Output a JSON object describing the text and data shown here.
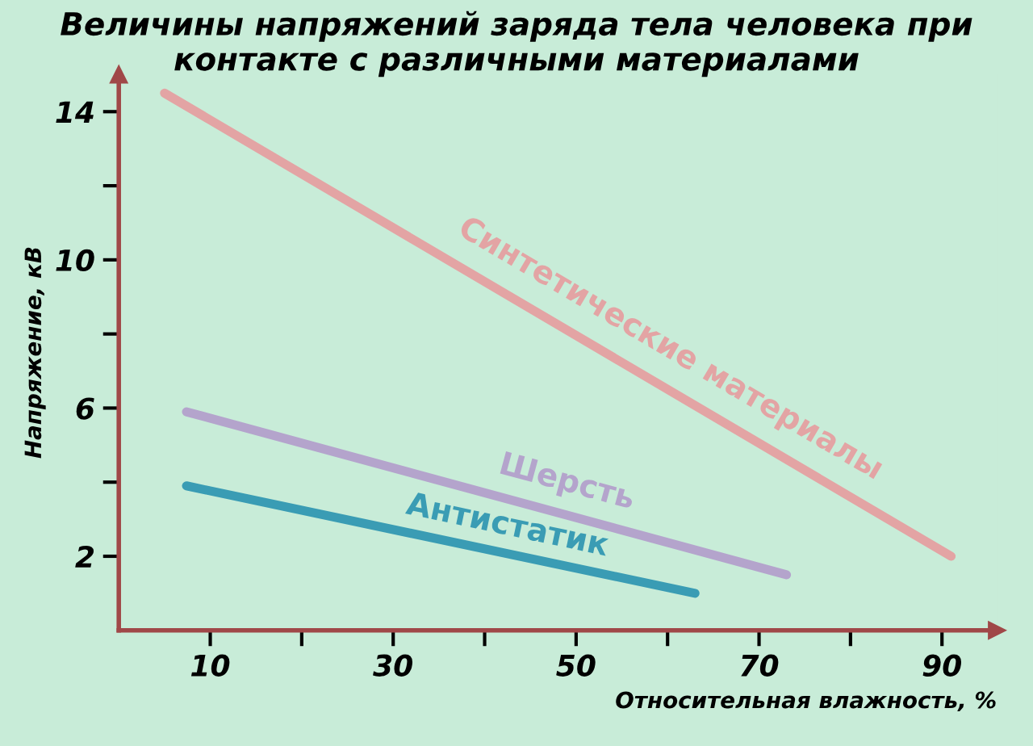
{
  "chart_data": {
    "type": "line",
    "title": "Величины напряжений заряда тела человека при\nконтакте с различными материалами",
    "xlabel": "Относительная влажность, %",
    "ylabel": "Напряжение, кВ",
    "xlim": [
      0,
      96
    ],
    "ylim": [
      0,
      15
    ],
    "xticks": [
      10,
      {
        "value": 20,
        "label": null
      },
      30,
      {
        "value": 40,
        "label": null
      },
      50,
      {
        "value": 60,
        "label": null
      },
      70,
      {
        "value": 80,
        "label": null
      },
      90
    ],
    "yticks": [
      2,
      {
        "value": 4,
        "label": null
      },
      6,
      {
        "value": 8,
        "label": null
      },
      10,
      {
        "value": 12,
        "label": null
      },
      14
    ],
    "grid": false,
    "legend": false,
    "marker": "none",
    "line_style": "solid",
    "series": [
      {
        "name": "Синтетические материалы",
        "color": "#e3a4a4",
        "x": [
          5,
          91
        ],
        "values": [
          14.5,
          2.0
        ]
      },
      {
        "name": "Шерсть",
        "color": "#b4a4cc",
        "x": [
          7.4,
          73
        ],
        "values": [
          5.9,
          1.5
        ]
      },
      {
        "name": "Антистатик",
        "color": "#3a9cb4",
        "x": [
          7.4,
          63
        ],
        "values": [
          3.9,
          1.0
        ]
      }
    ]
  }
}
